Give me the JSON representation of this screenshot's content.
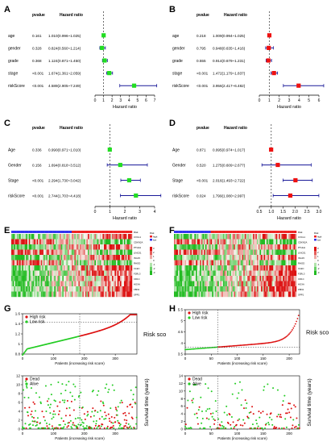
{
  "chart_data": [
    {
      "panel": "A",
      "type": "scatter",
      "subtype": "forest",
      "col_pvalue": "pvalue",
      "col_hr": "Hazard ratio",
      "xlabel": "Hazard ratio",
      "xlim": [
        0,
        7
      ],
      "xticks": [
        0,
        1,
        2,
        3,
        4,
        5,
        6,
        7
      ],
      "ref_line": 1,
      "marker_color": "#22dd22",
      "rows": [
        {
          "label": "age",
          "p": "0.161",
          "hr_text": "1.010(0.996~1.025)",
          "hr": 1.01,
          "lo": 0.996,
          "hi": 1.025
        },
        {
          "label": "gender",
          "p": "0.328",
          "hr_text": "0.824(0.560~1.214)",
          "hr": 0.824,
          "lo": 0.56,
          "hi": 1.214
        },
        {
          "label": "grade",
          "p": "0.368",
          "hr_text": "1.124(0.871~1.450)",
          "hr": 1.124,
          "lo": 0.871,
          "hi": 1.45
        },
        {
          "label": "stage",
          "p": "<0.001",
          "hr_text": "1.674(1.361~2.059)",
          "hr": 1.674,
          "lo": 1.361,
          "hi": 2.059
        },
        {
          "label": "riskScore",
          "p": "<0.001",
          "hr_text": "4.589(2.905~7.249)",
          "hr": 4.589,
          "lo": 2.905,
          "hi": 7.249
        }
      ]
    },
    {
      "panel": "B",
      "type": "scatter",
      "subtype": "forest",
      "col_pvalue": "pvalue",
      "col_hr": "Hazard ratio",
      "xlabel": "Hazard ratio",
      "xlim": [
        0,
        6
      ],
      "xticks": [
        0,
        1,
        2,
        3,
        4,
        5,
        6
      ],
      "ref_line": 1,
      "marker_color": "#ee1111",
      "rows": [
        {
          "label": "age",
          "p": "0.218",
          "hr_text": "1.009(0.994~1.025)",
          "hr": 1.009,
          "lo": 0.994,
          "hi": 1.025
        },
        {
          "label": "gender",
          "p": "0.795",
          "hr_text": "0.948(0.635~1.416)",
          "hr": 0.948,
          "lo": 0.635,
          "hi": 1.416
        },
        {
          "label": "grade",
          "p": "0.555",
          "hr_text": "0.914(0.679~1.231)",
          "hr": 0.914,
          "lo": 0.679,
          "hi": 1.231
        },
        {
          "label": "stage",
          "p": "<0.001",
          "hr_text": "1.472(1.179~1.837)",
          "hr": 1.472,
          "lo": 1.179,
          "hi": 1.837
        },
        {
          "label": "riskScore",
          "p": "<0.001",
          "hr_text": "3.956(2.417~6.482)",
          "hr": 3.956,
          "lo": 2.417,
          "hi": 6.482
        }
      ]
    },
    {
      "panel": "C",
      "type": "scatter",
      "subtype": "forest",
      "col_pvalue": "pvalue",
      "col_hr": "Hazard ratio",
      "xlabel": "Hazard ratio",
      "xlim": [
        0,
        4
      ],
      "xticks": [
        0,
        1,
        2,
        3,
        4
      ],
      "ref_line": 1,
      "marker_color": "#22dd22",
      "rows": [
        {
          "label": "Age",
          "p": "0.336",
          "hr_text": "0.990(0.971~1.010)",
          "hr": 0.99,
          "lo": 0.971,
          "hi": 1.01
        },
        {
          "label": "Gender",
          "p": "0.156",
          "hr_text": "1.694(0.818~3.512)",
          "hr": 1.694,
          "lo": 0.818,
          "hi": 3.512
        },
        {
          "label": "Stage",
          "p": "<0.001",
          "hr_text": "2.294(1.730~3.042)",
          "hr": 2.294,
          "lo": 1.73,
          "hi": 3.042
        },
        {
          "label": "riskScore",
          "p": "<0.001",
          "hr_text": "2.744(1.703~4.418)",
          "hr": 2.744,
          "lo": 1.703,
          "hi": 4.418
        }
      ]
    },
    {
      "panel": "D",
      "type": "scatter",
      "subtype": "forest",
      "col_pvalue": "pvalue",
      "col_hr": "Hazard ratio",
      "xlabel": "Hazard ratio",
      "xlim": [
        0.5,
        3.0
      ],
      "xticks": [
        0.5,
        1.0,
        1.5,
        2.0,
        2.5,
        3.0
      ],
      "xtick_labels": [
        "0.5",
        "1.0",
        "1.5",
        "2.0",
        "2.5",
        "3.0"
      ],
      "ref_line": 1,
      "marker_color": "#ee1111",
      "rows": [
        {
          "label": "Age",
          "p": "0.871",
          "hr_text": "0.995(0.974~1.017)",
          "hr": 0.995,
          "lo": 0.974,
          "hi": 1.017
        },
        {
          "label": "Gender",
          "p": "0.520",
          "hr_text": "1.275(0.609~2.677)",
          "hr": 1.275,
          "lo": 0.609,
          "hi": 2.677
        },
        {
          "label": "Stage",
          "p": "<0.001",
          "hr_text": "2.016(1.493~2.722)",
          "hr": 2.016,
          "lo": 1.493,
          "hi": 2.722
        },
        {
          "label": "riskScore",
          "p": "0.024",
          "hr_text": "1.799(1.080~2.997)",
          "hr": 1.799,
          "lo": 1.08,
          "hi": 2.997
        }
      ]
    },
    {
      "panel": "E",
      "type": "heatmap",
      "risk_colors": {
        "low": "#3333ee",
        "high": "#ee2222"
      },
      "cell_colors": {
        "low": "#22bb22",
        "mid": "#f7f7f0",
        "high": "#dd1111"
      },
      "rows": [
        "Risk",
        "CXCL1",
        "CDKN2A",
        "PTHLH",
        "LINC01",
        "ISG15",
        "RHOD",
        "CLEC",
        "F2RL3",
        "CD1C",
        "HOXA",
        "FBN1",
        "SPP1"
      ],
      "legend_labels": [
        "3",
        "2",
        "1",
        "0",
        "-1",
        "-2",
        "-3"
      ],
      "legend_group": [
        "Risk",
        "high",
        "low"
      ]
    },
    {
      "panel": "F",
      "type": "heatmap",
      "risk_colors": {
        "low": "#3333ee",
        "high": "#ee2222"
      },
      "cell_colors": {
        "low": "#22bb22",
        "mid": "#f7f7f0",
        "high": "#dd1111"
      },
      "rows": [
        "Risk",
        "CXCL1",
        "CDKN2A",
        "PTHLH",
        "LINC01",
        "ISG15",
        "RHOD",
        "CLEC",
        "F2RL3",
        "CD1C",
        "HOXA",
        "FBN1",
        "SPP1"
      ],
      "legend_labels": [
        "3",
        "2",
        "1",
        "0",
        "-1",
        "-2",
        "-3"
      ],
      "legend_group": [
        "Risk",
        "high",
        "low"
      ]
    },
    {
      "panel": "G",
      "type": "scatter",
      "title": "",
      "xlabel": "Patients (increasing risk score)",
      "ylabel": "Risk score",
      "xlim": [
        0,
        370
      ],
      "ylim": [
        0.8,
        1.6
      ],
      "xticks": [
        0,
        100,
        200,
        300
      ],
      "yticks": [
        0.8,
        1.0,
        1.2,
        1.4,
        1.6
      ],
      "legend": [
        "High risk",
        "Low risk"
      ],
      "series_colors": {
        "high": "#dd1111",
        "low": "#22cc22"
      },
      "cutoff_index": 185,
      "cutoff_score": 1.43,
      "n": 370
    },
    {
      "panel": "H",
      "type": "scatter",
      "title": "",
      "xlabel": "Patients (increasing risk score)",
      "ylabel": "Risk score",
      "xlim": [
        0,
        220
      ],
      "ylim": [
        3.5,
        5.5
      ],
      "xticks": [
        0,
        50,
        100,
        150,
        200
      ],
      "yticks": [
        3.5,
        4.0,
        4.5,
        5.0,
        5.5
      ],
      "legend": [
        "High risk",
        "Low risk"
      ],
      "series_colors": {
        "high": "#dd1111",
        "low": "#22cc22"
      },
      "cutoff_index": 63,
      "cutoff_score": 3.8,
      "n": 220
    },
    {
      "panel": "G2",
      "type": "scatter",
      "xlabel": "Patients (increasing risk score)",
      "ylabel": "Survival time (years)",
      "xlim": [
        0,
        370
      ],
      "ylim": [
        0,
        12
      ],
      "xticks": [
        0,
        100,
        200,
        300
      ],
      "yticks": [
        0,
        2,
        4,
        6,
        8,
        10,
        12
      ],
      "legend": [
        "Dead",
        "Alive"
      ],
      "series_colors": {
        "dead": "#dd1111",
        "alive": "#22cc22"
      },
      "cutoff_index": 185
    },
    {
      "panel": "H2",
      "type": "scatter",
      "xlabel": "Patients (increasing risk score)",
      "ylabel": "Survival time (years)",
      "xlim": [
        0,
        220
      ],
      "ylim": [
        0,
        14
      ],
      "xticks": [
        0,
        50,
        100,
        150,
        200
      ],
      "yticks": [
        0,
        2,
        4,
        6,
        8,
        10,
        12,
        14
      ],
      "legend": [
        "Dead",
        "Alive"
      ],
      "series_colors": {
        "dead": "#dd1111",
        "alive": "#22cc22"
      },
      "cutoff_index": 63
    }
  ],
  "labels": {
    "A": "A",
    "B": "B",
    "C": "C",
    "D": "D",
    "E": "E",
    "F": "F",
    "G": "G",
    "H": "H"
  }
}
